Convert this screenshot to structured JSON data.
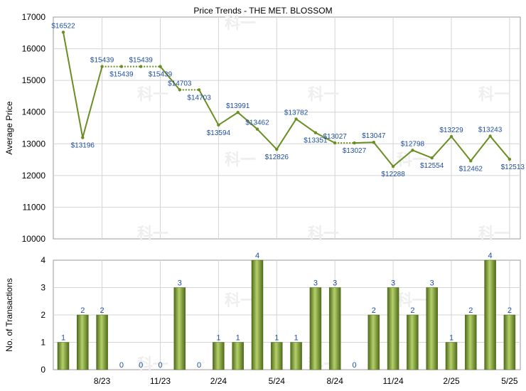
{
  "chart_data": {
    "type": "line+bar",
    "title": "Price Trends - THE MET. BLOSSOM",
    "colors": {
      "line": "#6b8e23",
      "bar_dark": "#4f6b1a",
      "bar_light": "#b5d06a",
      "value_label": "#1f4e9c",
      "grid": "#d4d4d4"
    },
    "price": {
      "ylabel": "Average Price",
      "ylim": [
        10000,
        17000
      ],
      "yticks": [
        "17000",
        "16000",
        "15000",
        "14000",
        "13000",
        "12000",
        "11000",
        "10000"
      ],
      "points": [
        {
          "i": 0,
          "value": 16522,
          "label": "$16522"
        },
        {
          "i": 1,
          "value": 13196,
          "label": "$13196"
        },
        {
          "i": 2,
          "value": 15439,
          "label": "$15439"
        },
        {
          "i": 3,
          "value": 15439,
          "label": "$15439"
        },
        {
          "i": 4,
          "value": 15439,
          "label": "$15439"
        },
        {
          "i": 5,
          "value": 15439,
          "label": "$15439"
        },
        {
          "i": 6,
          "value": 14703,
          "label": "$14703"
        },
        {
          "i": 7,
          "value": 14703,
          "label": "$14703"
        },
        {
          "i": 8,
          "value": 13594,
          "label": "$13594"
        },
        {
          "i": 9,
          "value": 13991,
          "label": "$13991"
        },
        {
          "i": 10,
          "value": 13462,
          "label": "$13462"
        },
        {
          "i": 11,
          "value": 12826,
          "label": "$12826"
        },
        {
          "i": 12,
          "value": 13782,
          "label": "$13782"
        },
        {
          "i": 13,
          "value": 13351,
          "label": "$13351"
        },
        {
          "i": 14,
          "value": 13027,
          "label": "$13027"
        },
        {
          "i": 15,
          "value": 13027,
          "label": "$13027"
        },
        {
          "i": 16,
          "value": 13047,
          "label": "$13047"
        },
        {
          "i": 17,
          "value": 12288,
          "label": "$12288"
        },
        {
          "i": 18,
          "value": 12798,
          "label": "$12798"
        },
        {
          "i": 19,
          "value": 12554,
          "label": "$12554"
        },
        {
          "i": 20,
          "value": 13229,
          "label": "$13229"
        },
        {
          "i": 21,
          "value": 12462,
          "label": "$12462"
        },
        {
          "i": 22,
          "value": 13243,
          "label": "$13243"
        },
        {
          "i": 23,
          "value": 12513,
          "label": "$12513"
        }
      ]
    },
    "transactions": {
      "ylabel": "No. of Transactions",
      "ylim": [
        0,
        4
      ],
      "yticks": [
        "4",
        "3",
        "2",
        "1",
        "0"
      ],
      "values": [
        1,
        2,
        2,
        0,
        0,
        0,
        3,
        0,
        1,
        1,
        4,
        1,
        1,
        3,
        3,
        0,
        2,
        3,
        2,
        3,
        1,
        2,
        4,
        2
      ]
    },
    "x_ticks": [
      {
        "i": 2,
        "label": "8/23"
      },
      {
        "i": 5,
        "label": "11/23"
      },
      {
        "i": 8,
        "label": "2/24"
      },
      {
        "i": 11,
        "label": "5/24"
      },
      {
        "i": 14,
        "label": "8/24"
      },
      {
        "i": 17,
        "label": "11/24"
      },
      {
        "i": 20,
        "label": "2/25"
      },
      {
        "i": 23,
        "label": "5/25"
      }
    ]
  }
}
